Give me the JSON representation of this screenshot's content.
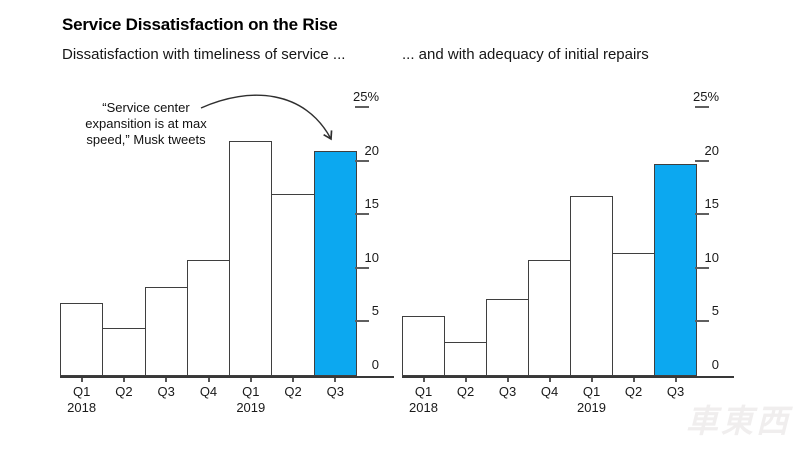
{
  "header": {
    "title": "Service Dissatisfaction on the Rise"
  },
  "annotation": {
    "line1": "“Service center",
    "line2": "expansition is at max",
    "line3": "speed,” Musk tweets"
  },
  "watermark": {
    "text": "車東西"
  },
  "colors": {
    "highlight_blue": "#0ca8f0",
    "bar_fill": "#ffffff",
    "bar_border": "#3f3f3f",
    "axis_line": "#383838",
    "tick_dash": "#5f5f5f",
    "text": "#161616"
  },
  "chart_data": [
    {
      "type": "bar",
      "subtitle": "Dissatisfaction with timeliness of service ...",
      "categories": [
        "Q1",
        "Q2",
        "Q3",
        "Q4",
        "Q1",
        "Q2",
        "Q3"
      ],
      "year_labels": [
        {
          "index": 0,
          "text": "2018"
        },
        {
          "index": 4,
          "text": "2019"
        }
      ],
      "values": [
        6.8,
        4.5,
        8.3,
        10.8,
        21.9,
        17.0,
        21.0
      ],
      "unit": "%",
      "ylim": [
        0,
        25
      ],
      "yticks": [
        25,
        20,
        15,
        10,
        5,
        0
      ],
      "ytick_labels": [
        "25%",
        "20",
        "15",
        "10",
        "5",
        "0"
      ],
      "highlight_index": 6,
      "grid": false,
      "axis_side": "right"
    },
    {
      "type": "bar",
      "subtitle": "... and with adequacy of initial repairs",
      "categories": [
        "Q1",
        "Q2",
        "Q3",
        "Q4",
        "Q1",
        "Q2",
        "Q3"
      ],
      "year_labels": [
        {
          "index": 0,
          "text": "2018"
        },
        {
          "index": 4,
          "text": "2019"
        }
      ],
      "values": [
        5.6,
        3.2,
        7.2,
        10.8,
        16.8,
        11.5,
        19.8
      ],
      "unit": "%",
      "ylim": [
        0,
        25
      ],
      "yticks": [
        25,
        20,
        15,
        10,
        5,
        0
      ],
      "ytick_labels": [
        "25%",
        "20",
        "15",
        "10",
        "5",
        "0"
      ],
      "highlight_index": 6,
      "grid": false,
      "axis_side": "right"
    }
  ]
}
